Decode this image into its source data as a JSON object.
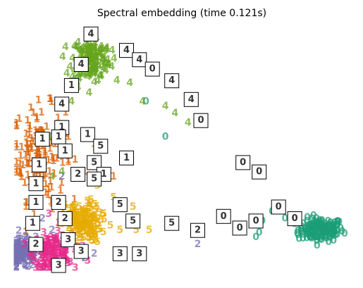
{
  "chart_data": {
    "type": "scatter",
    "title": "Spectral embedding (time 0.121s)",
    "xlabel": "",
    "ylabel": "",
    "axes_visible": false,
    "grid": false,
    "legend": "none",
    "xlim": [
      0,
      1
    ],
    "ylim": [
      0,
      1
    ],
    "point_marker": "digit_label",
    "colors": {
      "0": "#1b9e77",
      "1": "#d95f02",
      "2": "#7570b3",
      "3": "#e7298a",
      "4": "#66a61e",
      "5": "#e6ab02"
    },
    "clusters": [
      {
        "label": "0",
        "color": "#1b9e77",
        "n": 150,
        "center": [
          0.93,
          0.15
        ],
        "spread": [
          0.035,
          0.025
        ],
        "scattered_points": [
          [
            0.73,
            0.12
          ],
          [
            0.74,
            0.14
          ],
          [
            0.78,
            0.23
          ],
          [
            0.82,
            0.2
          ],
          [
            0.86,
            0.13
          ],
          [
            0.39,
            0.7
          ],
          [
            0.45,
            0.55
          ],
          [
            0.75,
            0.19
          ]
        ]
      },
      {
        "label": "1",
        "color": "#d95f02",
        "n": 150,
        "center": [
          0.06,
          0.48
        ],
        "spread": [
          0.04,
          0.1
        ],
        "scattered_points": [
          [
            0.15,
            0.45
          ],
          [
            0.15,
            0.55
          ],
          [
            0.2,
            0.4
          ],
          [
            0.23,
            0.52
          ],
          [
            0.29,
            0.38
          ],
          [
            0.1,
            0.24
          ],
          [
            0.08,
            0.31
          ]
        ]
      },
      {
        "label": "2",
        "color": "#7570b3",
        "n": 150,
        "center": [
          0.01,
          0.05
        ],
        "spread": [
          0.03,
          0.03
        ],
        "scattered_points": [
          [
            0.05,
            0.12
          ],
          [
            0.07,
            0.2
          ],
          [
            0.1,
            0.15
          ],
          [
            0.2,
            0.03
          ],
          [
            0.23,
            0.05
          ],
          [
            0.55,
            0.09
          ],
          [
            0.13,
            0.38
          ]
        ]
      },
      {
        "label": "3",
        "color": "#e7298a",
        "n": 150,
        "center": [
          0.1,
          0.05
        ],
        "spread": [
          0.03,
          0.04
        ],
        "scattered_points": [
          [
            0.12,
            0.18
          ],
          [
            0.15,
            0.11
          ],
          [
            0.18,
            0.08
          ],
          [
            0.21,
            0.02
          ],
          [
            0.3,
            0.04
          ],
          [
            0.36,
            0.04
          ],
          [
            0.09,
            0.22
          ]
        ]
      },
      {
        "label": "4",
        "color": "#66a61e",
        "n": 150,
        "center": [
          0.22,
          0.88
        ],
        "spread": [
          0.03,
          0.05
        ],
        "scattered_points": [
          [
            0.26,
            0.84
          ],
          [
            0.3,
            0.79
          ],
          [
            0.34,
            0.78
          ],
          [
            0.38,
            0.7
          ],
          [
            0.45,
            0.68
          ],
          [
            0.48,
            0.65
          ],
          [
            0.52,
            0.61
          ],
          [
            0.18,
            0.76
          ],
          [
            0.16,
            0.7
          ],
          [
            0.12,
            0.6
          ],
          [
            0.09,
            0.55
          ],
          [
            0.13,
            0.4
          ],
          [
            0.1,
            0.38
          ]
        ]
      },
      {
        "label": "5",
        "color": "#e6ab02",
        "n": 150,
        "center": [
          0.19,
          0.18
        ],
        "spread": [
          0.03,
          0.04
        ],
        "scattered_points": [
          [
            0.22,
            0.28
          ],
          [
            0.26,
            0.22
          ],
          [
            0.28,
            0.17
          ],
          [
            0.31,
            0.15
          ],
          [
            0.34,
            0.18
          ],
          [
            0.36,
            0.15
          ],
          [
            0.4,
            0.15
          ],
          [
            0.29,
            0.29
          ],
          [
            0.24,
            0.34
          ],
          [
            0.35,
            0.25
          ],
          [
            0.24,
            0.1
          ]
        ]
      }
    ],
    "annotated_thumbnails": [
      {
        "label": "4",
        "x": 0.22,
        "y": 0.99
      },
      {
        "label": "4",
        "x": 0.33,
        "y": 0.92
      },
      {
        "label": "4",
        "x": 0.37,
        "y": 0.88
      },
      {
        "label": "0",
        "x": 0.41,
        "y": 0.84
      },
      {
        "label": "4",
        "x": 0.47,
        "y": 0.79
      },
      {
        "label": "4",
        "x": 0.53,
        "y": 0.71
      },
      {
        "label": "0",
        "x": 0.56,
        "y": 0.62
      },
      {
        "label": "4",
        "x": 0.19,
        "y": 0.86
      },
      {
        "label": "1",
        "x": 0.16,
        "y": 0.77
      },
      {
        "label": "4",
        "x": 0.13,
        "y": 0.69
      },
      {
        "label": "1",
        "x": 0.13,
        "y": 0.59
      },
      {
        "label": "1",
        "x": 0.07,
        "y": 0.54
      },
      {
        "label": "1",
        "x": 0.12,
        "y": 0.55
      },
      {
        "label": "1",
        "x": 0.21,
        "y": 0.56
      },
      {
        "label": "5",
        "x": 0.25,
        "y": 0.51
      },
      {
        "label": "1",
        "x": 0.14,
        "y": 0.49
      },
      {
        "label": "1",
        "x": 0.06,
        "y": 0.43
      },
      {
        "label": "1",
        "x": 0.33,
        "y": 0.46
      },
      {
        "label": "5",
        "x": 0.23,
        "y": 0.44
      },
      {
        "label": "1",
        "x": 0.26,
        "y": 0.39
      },
      {
        "label": "2",
        "x": 0.18,
        "y": 0.39
      },
      {
        "label": "5",
        "x": 0.23,
        "y": 0.37
      },
      {
        "label": "1",
        "x": 0.05,
        "y": 0.35
      },
      {
        "label": "1",
        "x": 0.05,
        "y": 0.27
      },
      {
        "label": "2",
        "x": 0.12,
        "y": 0.27
      },
      {
        "label": "5",
        "x": 0.31,
        "y": 0.26
      },
      {
        "label": "2",
        "x": 0.14,
        "y": 0.2
      },
      {
        "label": "5",
        "x": 0.35,
        "y": 0.19
      },
      {
        "label": "1",
        "x": 0.04,
        "y": 0.18
      },
      {
        "label": "3",
        "x": 0.15,
        "y": 0.11
      },
      {
        "label": "2",
        "x": 0.05,
        "y": 0.09
      },
      {
        "label": "3",
        "x": 0.19,
        "y": 0.06
      },
      {
        "label": "3",
        "x": 0.31,
        "y": 0.05
      },
      {
        "label": "3",
        "x": 0.37,
        "y": 0.05
      },
      {
        "label": "3",
        "x": 0.12,
        "y": 0.0
      },
      {
        "label": "5",
        "x": 0.47,
        "y": 0.18
      },
      {
        "label": "2",
        "x": 0.55,
        "y": 0.15
      },
      {
        "label": "0",
        "x": 0.69,
        "y": 0.44
      },
      {
        "label": "0",
        "x": 0.74,
        "y": 0.4
      },
      {
        "label": "0",
        "x": 0.63,
        "y": 0.21
      },
      {
        "label": "0",
        "x": 0.68,
        "y": 0.16
      },
      {
        "label": "0",
        "x": 0.73,
        "y": 0.19
      },
      {
        "label": "0",
        "x": 0.8,
        "y": 0.25
      },
      {
        "label": "0",
        "x": 0.85,
        "y": 0.2
      }
    ]
  }
}
